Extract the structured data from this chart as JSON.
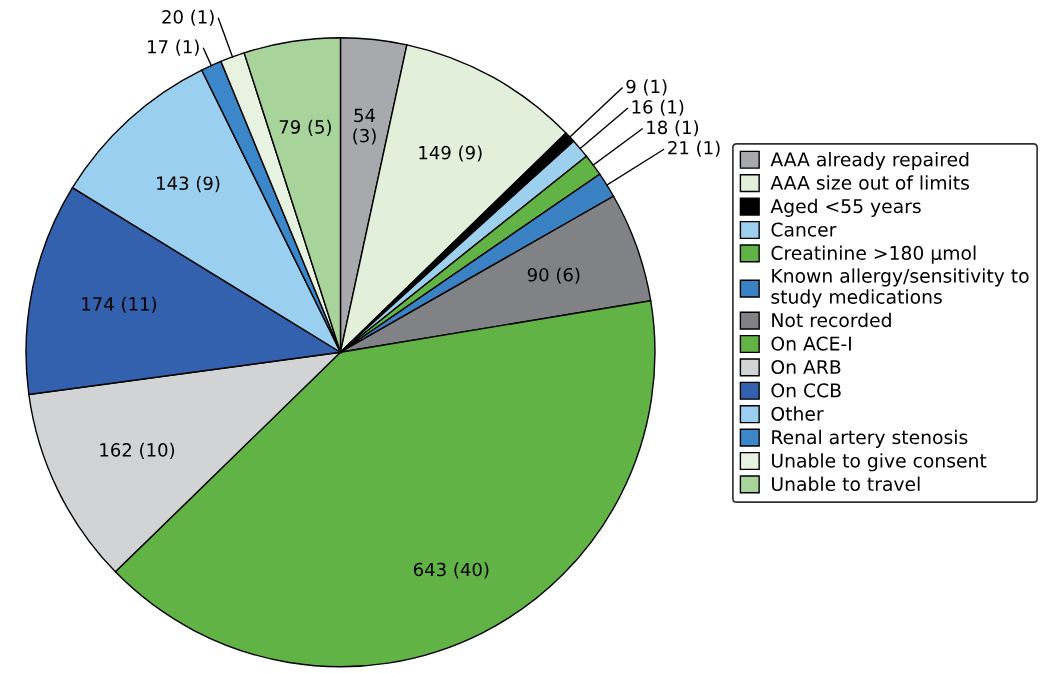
{
  "chart_data": {
    "type": "pie",
    "categories": [
      "AAA already repaired",
      "AAA size out of limits",
      "Aged <55 years",
      "Cancer",
      "Creatinine >180 µmol",
      "Known allergy/sensitivity to\nstudy medications",
      "Not recorded",
      "On ACE-I",
      "On ARB",
      "On CCB",
      "Other",
      "Renal artery stenosis",
      "Unable to give consent",
      "Unable to travel"
    ],
    "values": [
      54,
      149,
      9,
      16,
      18,
      21,
      90,
      643,
      162,
      174,
      143,
      17,
      20,
      79
    ],
    "value_labels": [
      "54\n(3)",
      "149 (9)",
      "9 (1)",
      "16 (1)",
      "18 (1)",
      "21 (1)",
      "90 (6)",
      "643 (40)",
      "162 (10)",
      "174 (11)",
      "143 (9)",
      "17 (1)",
      "20 (1)",
      "79 (5)"
    ],
    "colors": [
      "#a7a9ac",
      "#e2efda",
      "#000000",
      "#9dcfee",
      "#62b346",
      "#3b82c4",
      "#808285",
      "#62b346",
      "#d1d3d4",
      "#3461ad",
      "#9bcfef",
      "#3b87c9",
      "#e8f2e0",
      "#a8d39a"
    ],
    "legend": "right"
  }
}
